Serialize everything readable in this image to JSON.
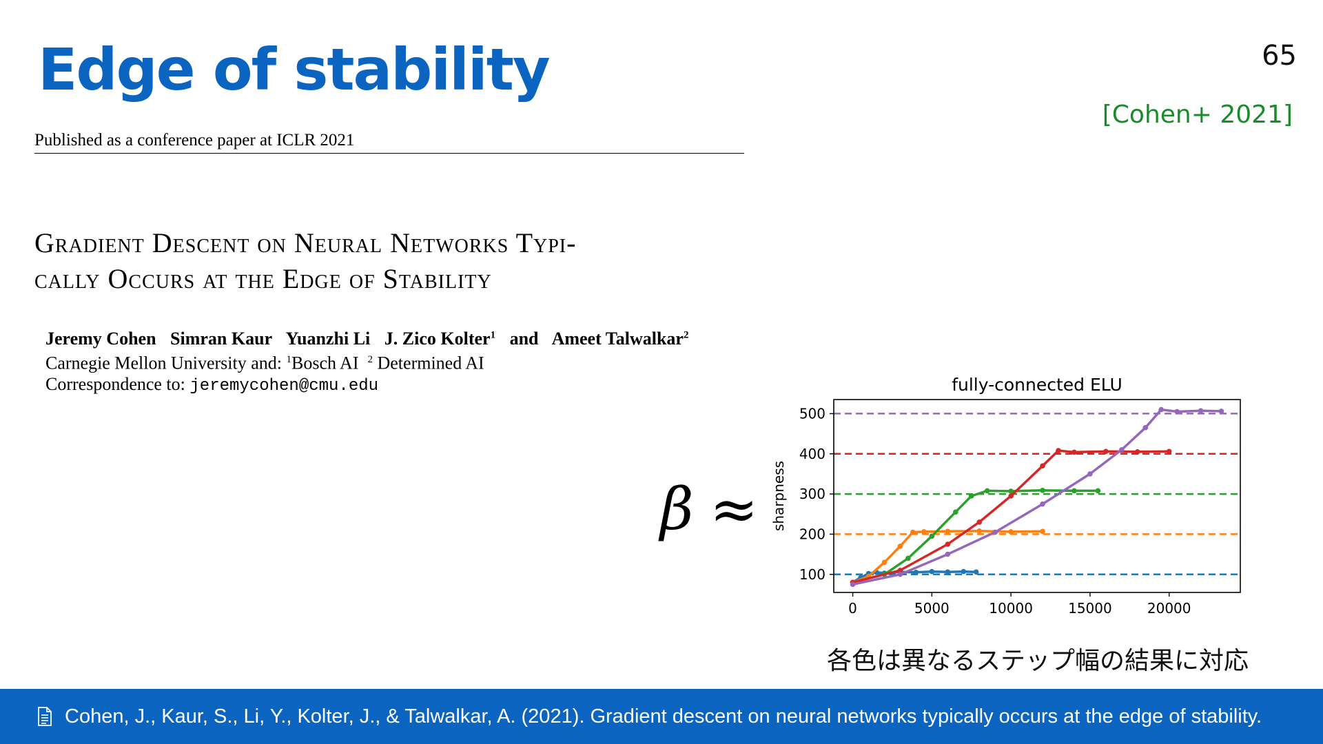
{
  "slide": {
    "title": "Edge of stability",
    "page_number": "65",
    "citation": "[Cohen+ 2021]"
  },
  "paper": {
    "header": "Published as a conference paper at ICLR 2021",
    "title_line1": "Gradient Descent on Neural Networks Typi-",
    "title_line2": "cally Occurs at the Edge of Stability",
    "authors": [
      "Jeremy Cohen",
      "Simran Kaur",
      "Yuanzhi Li",
      "J. Zico Kolter",
      "and",
      "Ameet Talwalkar"
    ],
    "author_superscripts": {
      "kolter": "1",
      "talwalkar": "2"
    },
    "affiliation_prefix": "Carnegie Mellon University and: ",
    "affiliation_sup1": "1",
    "affiliation_1": "Bosch AI",
    "affiliation_sup2": "2",
    "affiliation_2": "Determined AI",
    "correspondence_label": "Correspondence to: ",
    "correspondence_email": "jeremycohen@cmu.edu"
  },
  "equation": {
    "beta": "β",
    "approx": "≈"
  },
  "caption_jp": "各色は異なるステップ幅の結果に対応",
  "footer": {
    "icon": "document-icon",
    "reference": "Cohen, J., Kaur, S., Li, Y., Kolter, J., & Talwalkar, A. (2021). Gradient descent on neural networks typically occurs at the edge of stability."
  },
  "colors": {
    "title": "#0a64c0",
    "citation": "#1a8a2a",
    "footer_bg": "#0a64c0"
  },
  "chart_data": {
    "type": "line",
    "title": "fully-connected ELU",
    "xlabel": "",
    "ylabel": "sharpness",
    "xlim": [
      -1200,
      24500
    ],
    "ylim": [
      55,
      535
    ],
    "xticks": [
      0,
      5000,
      10000,
      15000,
      20000
    ],
    "yticks": [
      100,
      200,
      300,
      400,
      500
    ],
    "series": [
      {
        "color": "#1f77b4",
        "threshold": 100,
        "x": [
          0,
          500,
          1000,
          1500,
          2000,
          3000,
          4000,
          5000,
          6000,
          7000,
          7800
        ],
        "y": [
          80,
          92,
          102,
          105,
          103,
          106,
          105,
          107,
          106,
          107,
          106
        ]
      },
      {
        "color": "#ff7f0e",
        "threshold": 200,
        "x": [
          0,
          1000,
          2000,
          3000,
          3800,
          4500,
          6000,
          8000,
          10000,
          12000
        ],
        "y": [
          80,
          95,
          130,
          170,
          205,
          206,
          207,
          208,
          206,
          207
        ]
      },
      {
        "color": "#2ca02c",
        "threshold": 300,
        "x": [
          0,
          2000,
          3500,
          5000,
          6500,
          7500,
          8500,
          10000,
          12000,
          14000,
          15500
        ],
        "y": [
          80,
          100,
          140,
          195,
          255,
          295,
          308,
          307,
          309,
          308,
          308
        ]
      },
      {
        "color": "#d62728",
        "threshold": 400,
        "x": [
          0,
          3000,
          6000,
          8000,
          10000,
          12000,
          13000,
          14000,
          16000,
          18000,
          20000
        ],
        "y": [
          80,
          110,
          175,
          230,
          295,
          370,
          408,
          404,
          406,
          405,
          406
        ]
      },
      {
        "color": "#9467bd",
        "threshold": 500,
        "x": [
          0,
          3000,
          6000,
          9000,
          12000,
          15000,
          17000,
          18500,
          19500,
          20500,
          22000,
          23300
        ],
        "y": [
          75,
          100,
          150,
          205,
          275,
          350,
          410,
          465,
          510,
          505,
          507,
          506
        ]
      }
    ]
  }
}
